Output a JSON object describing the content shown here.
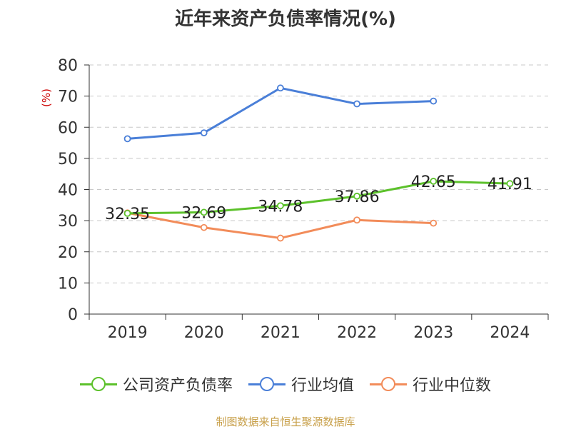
{
  "title": "近年来资产负债率情况(%)",
  "unit_label": "(%)",
  "source": "制图数据来自恒生聚源数据库",
  "legend": [
    {
      "label": "公司资产负债率",
      "color": "#5cc12b"
    },
    {
      "label": "行业均值",
      "color": "#4a7fd8"
    },
    {
      "label": "行业中位数",
      "color": "#f28c5a"
    }
  ],
  "chart_data": {
    "type": "line",
    "title": "近年来资产负债率情况(%)",
    "ylabel": "(%)",
    "xlabel": "",
    "categories": [
      "2019",
      "2020",
      "2021",
      "2022",
      "2023",
      "2024"
    ],
    "ylim": [
      0,
      80
    ],
    "yticks": [
      0,
      10,
      20,
      30,
      40,
      50,
      60,
      70,
      80
    ],
    "grid": true,
    "legend_position": "bottom",
    "series": [
      {
        "name": "公司资产负债率",
        "color": "#5cc12b",
        "values": [
          32.35,
          32.69,
          34.78,
          37.86,
          42.65,
          41.91
        ],
        "labels": [
          "32.35",
          "32.69",
          "34.78",
          "37.86",
          "42.65",
          "41.91"
        ]
      },
      {
        "name": "行业均值",
        "color": "#4a7fd8",
        "values": [
          56.3,
          58.2,
          72.6,
          67.5,
          68.4,
          null
        ]
      },
      {
        "name": "行业中位数",
        "color": "#f28c5a",
        "values": [
          32.5,
          27.8,
          24.4,
          30.2,
          29.2,
          null
        ]
      }
    ]
  }
}
